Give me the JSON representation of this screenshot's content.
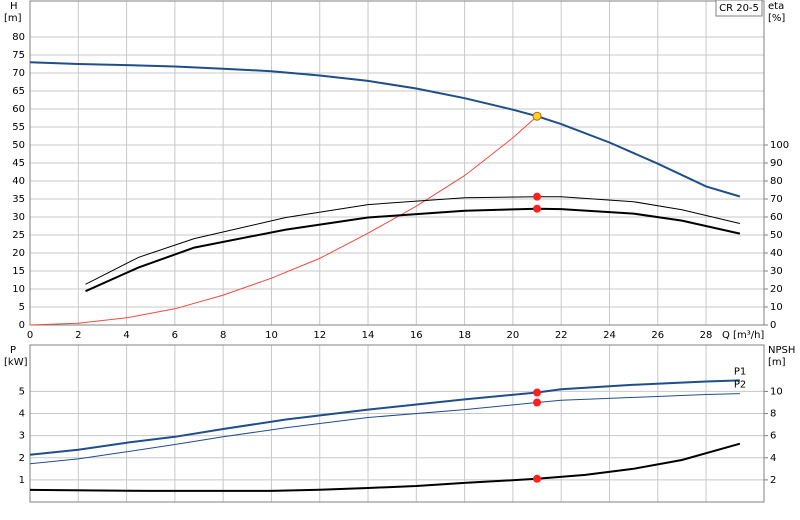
{
  "chart_data": [
    {
      "type": "line",
      "title": "CR 20-5",
      "y_label": "H",
      "y_unit": "[m]",
      "y2_label": "eta",
      "y2_unit": "[%]",
      "x_label": "Q [m³/h]",
      "xlim": [
        0,
        30.4
      ],
      "xticks": [
        0,
        2,
        4,
        6,
        8,
        10,
        12,
        14,
        16,
        18,
        20,
        22,
        24,
        26,
        28
      ],
      "xtick_labels": true,
      "ylim": [
        0,
        90
      ],
      "yticks": [
        0,
        5,
        10,
        15,
        20,
        25,
        30,
        35,
        40,
        45,
        50,
        55,
        60,
        65,
        70,
        75,
        80
      ],
      "y2lim": [
        0,
        180
      ],
      "y2ticks": [
        0,
        10,
        20,
        30,
        40,
        50,
        60,
        70,
        80,
        90,
        100
      ],
      "grid": true,
      "series": [
        {
          "color": "#1f4e8c",
          "width": 2,
          "x": [
            0,
            2,
            4,
            6,
            8,
            10,
            12,
            14,
            16,
            18,
            20,
            21,
            22,
            24,
            26,
            28,
            29.4
          ],
          "values": [
            73,
            72.5,
            72.2,
            71.8,
            71.2,
            70.5,
            69.3,
            67.8,
            65.7,
            63,
            59.8,
            58,
            55.8,
            50.7,
            44.8,
            38.5,
            35.7
          ]
        },
        {
          "color": "#f04a40",
          "width": 1,
          "x": [
            0,
            2,
            4,
            6,
            8,
            10,
            12,
            14,
            16,
            18,
            20,
            21
          ],
          "values": [
            0,
            0.5,
            2,
            4.5,
            8.3,
            13,
            18.5,
            25.5,
            33,
            41.5,
            52,
            58
          ]
        },
        {
          "color": "#000000",
          "width": 1,
          "axis": "y2",
          "x": [
            2.3,
            4.5,
            6.8,
            10.6,
            14,
            18,
            21,
            22,
            25,
            27,
            29.4
          ],
          "values": [
            22.6,
            37.6,
            48,
            59.7,
            66.9,
            70.7,
            71.3,
            71.3,
            68.5,
            64,
            56.4
          ]
        },
        {
          "color": "#000000",
          "width": 2,
          "axis": "y2",
          "x": [
            2.3,
            4.5,
            6.8,
            10.6,
            14,
            18,
            21,
            22,
            25,
            27,
            29.4
          ],
          "values": [
            18.8,
            32,
            43,
            53,
            59.7,
            63.5,
            64.6,
            64.4,
            61.9,
            58,
            50.8
          ]
        }
      ],
      "markers": [
        {
          "x": 21,
          "y": 58,
          "color": "#ffd02a"
        },
        {
          "x": 21,
          "y": 71.3,
          "axis": "y2",
          "color": "#ff2020"
        },
        {
          "x": 21,
          "y": 64.6,
          "axis": "y2",
          "color": "#ff2020"
        }
      ]
    },
    {
      "type": "line",
      "y_label": "P",
      "y_unit": "[kW]",
      "y2_label": "NPSH",
      "y2_unit": "[m]",
      "xlim": [
        0,
        30.4
      ],
      "xticks": [
        0,
        2,
        4,
        6,
        8,
        10,
        12,
        14,
        16,
        18,
        20,
        22,
        24,
        26,
        28
      ],
      "xtick_labels": false,
      "ylim": [
        0,
        7.1
      ],
      "yticks": [
        1,
        2,
        3,
        4,
        5
      ],
      "y2lim": [
        0,
        14.2
      ],
      "y2ticks": [
        2,
        4,
        6,
        8,
        10
      ],
      "grid": true,
      "series": [
        {
          "name": "P1",
          "color": "#1f4e8c",
          "width": 2,
          "x": [
            0,
            2,
            4,
            6,
            8,
            10.6,
            14,
            18,
            21,
            22,
            25,
            28,
            29.4
          ],
          "values": [
            2.14,
            2.36,
            2.68,
            2.95,
            3.3,
            3.73,
            4.18,
            4.64,
            4.95,
            5.1,
            5.3,
            5.45,
            5.5
          ]
        },
        {
          "name": "P2",
          "color": "#1f4e8c",
          "width": 1,
          "x": [
            0,
            2,
            4,
            6,
            8,
            10.6,
            14,
            18,
            21,
            22,
            25,
            28,
            29.4
          ],
          "values": [
            1.73,
            1.95,
            2.27,
            2.6,
            2.95,
            3.36,
            3.82,
            4.18,
            4.5,
            4.6,
            4.73,
            4.86,
            4.9
          ]
        },
        {
          "color": "#000000",
          "width": 2,
          "axis": "y2",
          "x": [
            0,
            5,
            10,
            12,
            14,
            16,
            18,
            21,
            23,
            25,
            27,
            29.4
          ],
          "values": [
            1.09,
            1,
            1,
            1.1,
            1.27,
            1.45,
            1.73,
            2.1,
            2.45,
            3,
            3.8,
            5.27
          ]
        }
      ],
      "markers": [
        {
          "x": 21,
          "y": 4.95,
          "color": "#ff2020"
        },
        {
          "x": 21,
          "y": 4.5,
          "color": "#ff2020"
        },
        {
          "x": 21,
          "y": 2.1,
          "axis": "y2",
          "color": "#ff2020"
        }
      ]
    }
  ]
}
